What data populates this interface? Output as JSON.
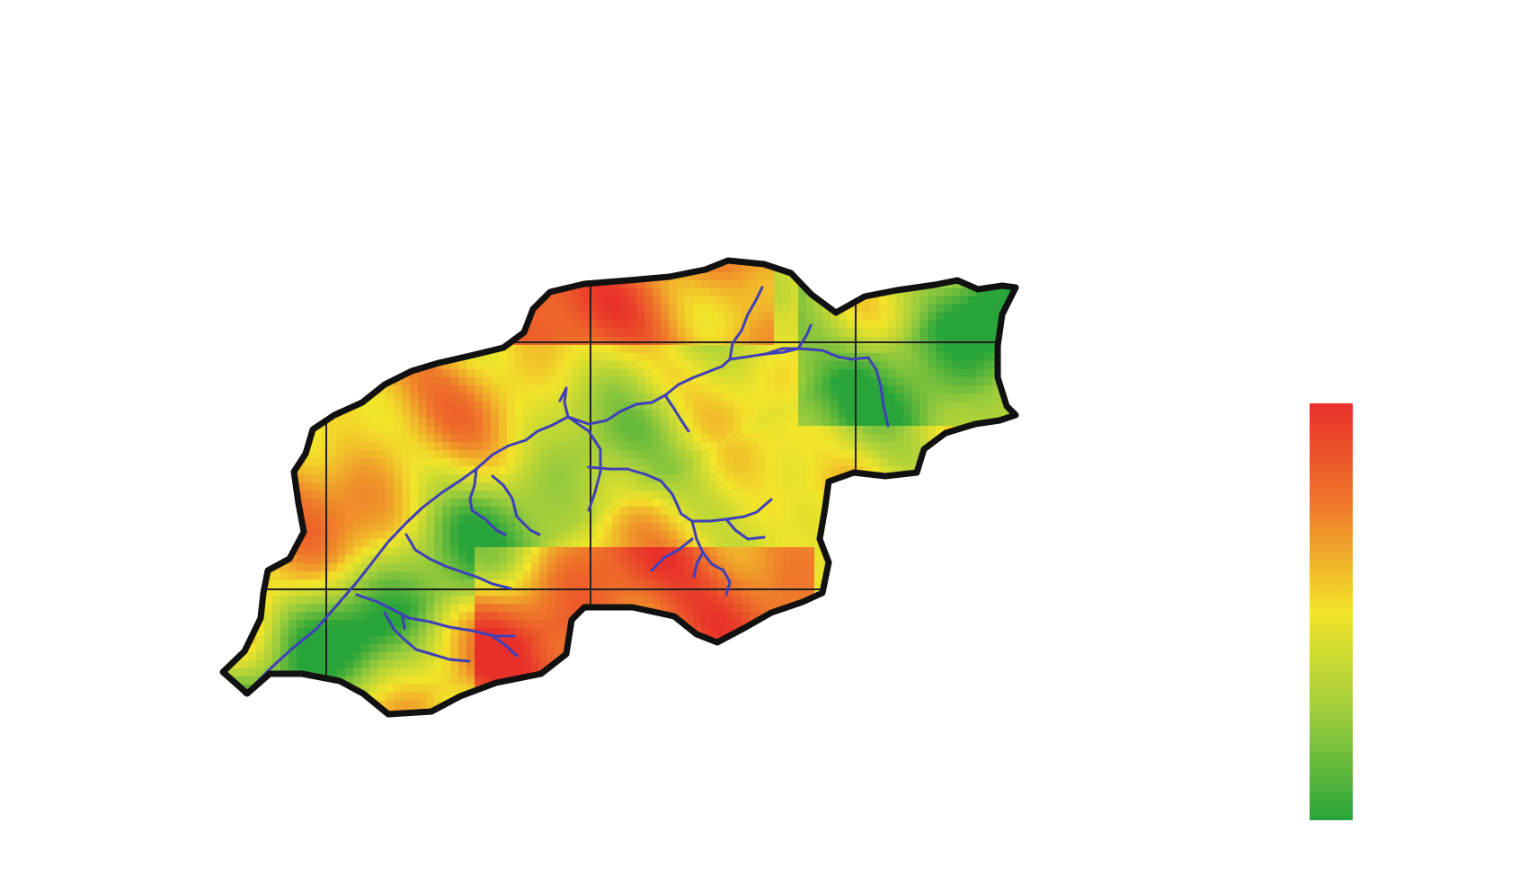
{
  "map": {
    "title": "",
    "layers": [
      "watershed-heatmap",
      "stream-network",
      "grid-lines",
      "boundary-outline"
    ],
    "colors": {
      "boundary": "#111111",
      "streams": "#4040b8",
      "grid": "#222222",
      "background": "#ffffff"
    }
  },
  "legend": {
    "ramp_colors": [
      "#e8302a",
      "#ef7a2a",
      "#f2e52a",
      "#9ccc3c",
      "#28a43a"
    ],
    "labels": []
  }
}
